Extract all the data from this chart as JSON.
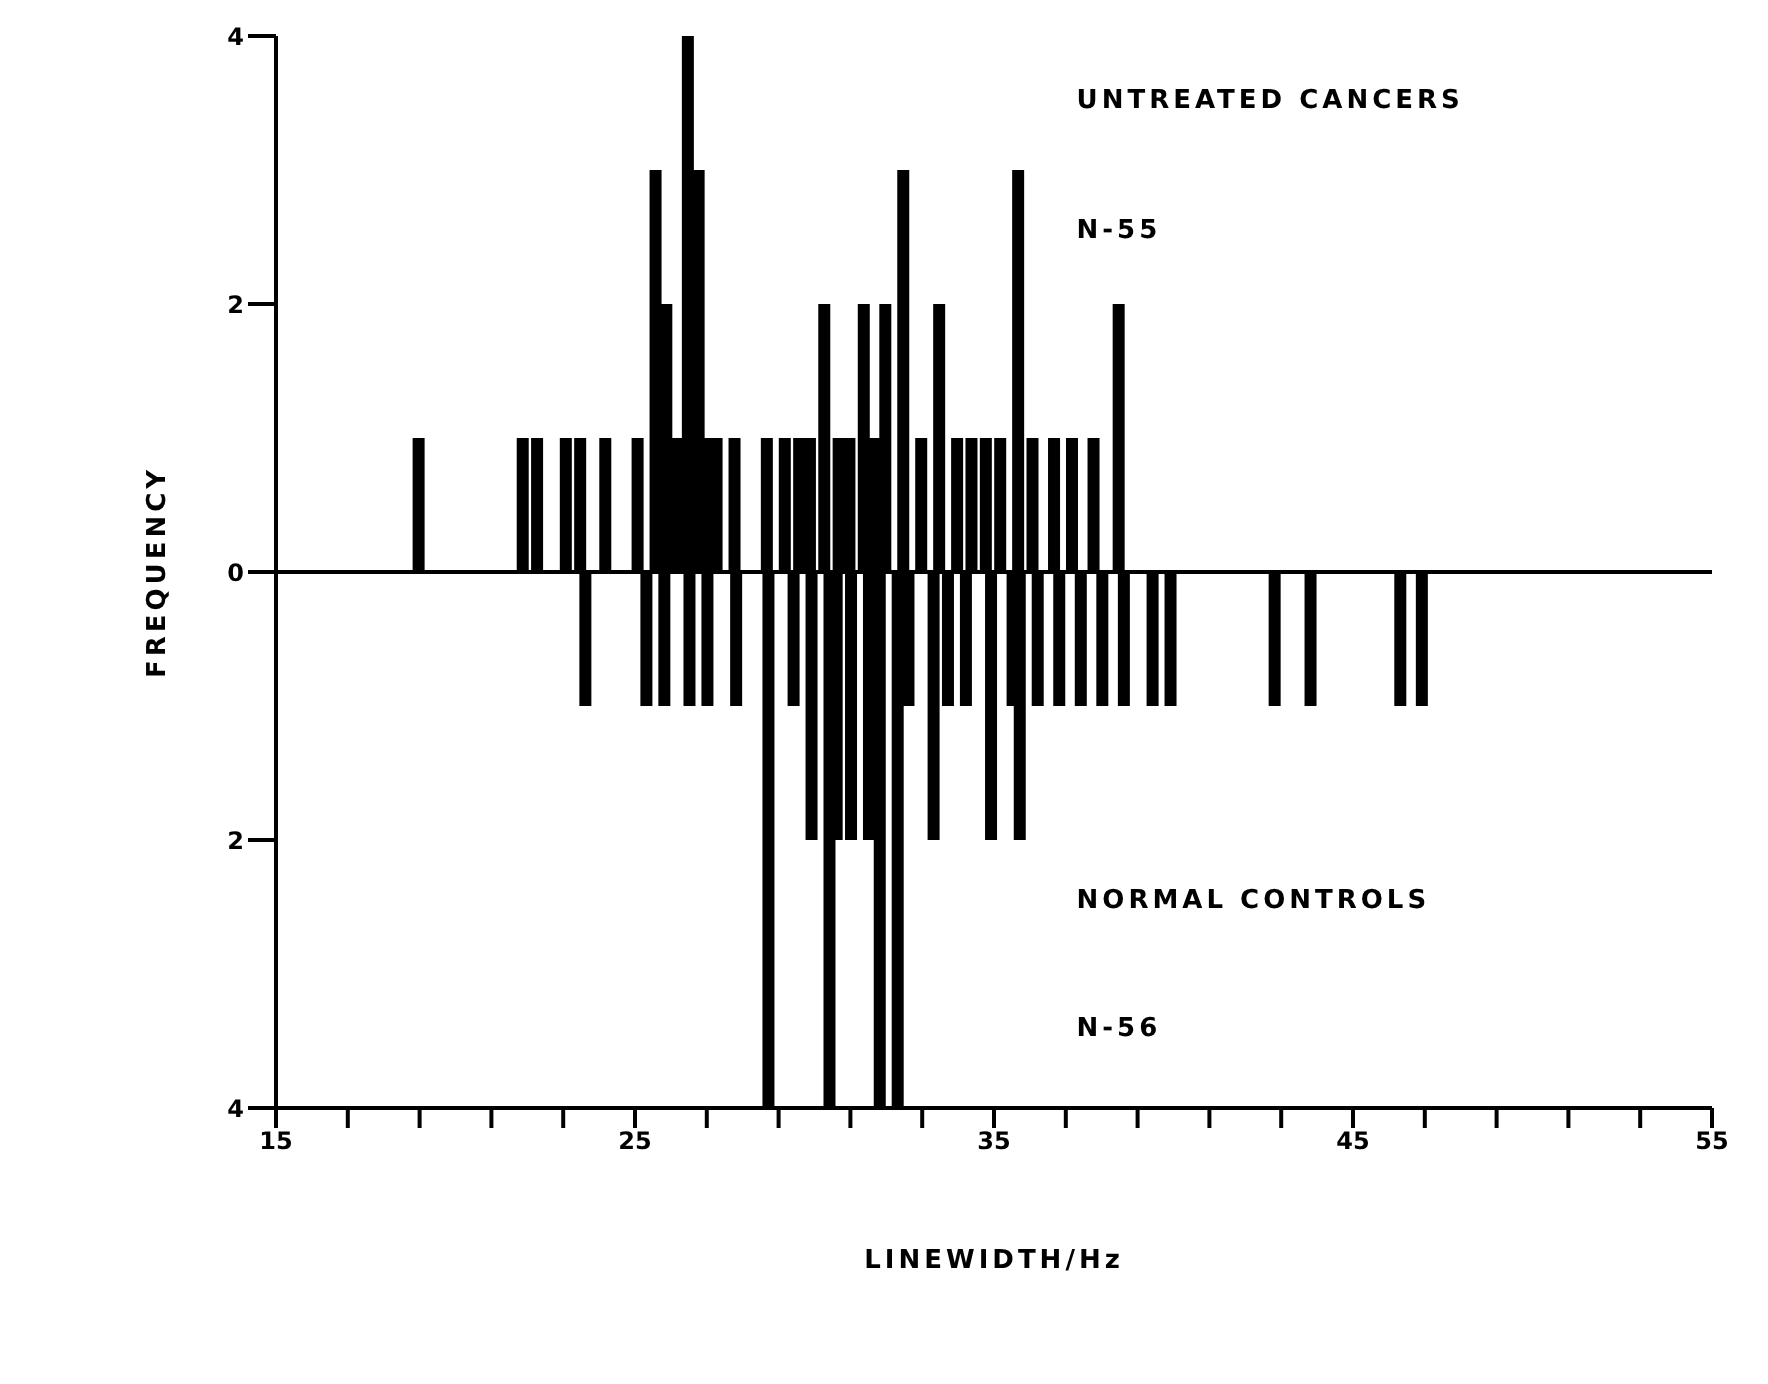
{
  "chart_data": {
    "type": "bar",
    "xlabel": "LINEWIDTH/Hz",
    "ylabel": "FREQUENCY",
    "annotations": [
      "N-55",
      "N-56"
    ],
    "series": [
      {
        "name": "UNTREATED CANCERS",
        "color": "#000000",
        "x": [
          19.0,
          21.9,
          22.3,
          23.1,
          23.5,
          24.2,
          25.1,
          25.6,
          25.9,
          26.2,
          26.5,
          26.8,
          27.0,
          27.3,
          27.8,
          28.7,
          29.2,
          29.6,
          29.9,
          30.3,
          30.7,
          31.0,
          31.4,
          31.7,
          32.0,
          32.5,
          33.0,
          33.5,
          34.0,
          34.4,
          34.8,
          35.2,
          35.7,
          36.1,
          36.7,
          37.2,
          37.8,
          38.5
        ],
        "values": [
          1,
          1,
          1,
          1,
          1,
          1,
          1,
          3,
          2,
          1,
          4,
          3,
          1,
          1,
          1,
          1,
          1,
          1,
          1,
          2,
          1,
          1,
          2,
          1,
          2,
          3,
          1,
          2,
          1,
          1,
          1,
          1,
          3,
          1,
          1,
          1,
          1,
          2
        ]
      },
      {
        "name": "NORMAL CONTROLS",
        "color": "#000000",
        "x": [
          23.6,
          25.3,
          25.8,
          26.5,
          27.0,
          27.8,
          28.7,
          29.4,
          29.9,
          30.4,
          30.6,
          31.0,
          31.5,
          31.8,
          32.3,
          32.6,
          33.3,
          33.7,
          34.2,
          34.9,
          35.5,
          35.7,
          36.2,
          36.8,
          37.4,
          38.0,
          38.6,
          39.4,
          39.9,
          42.8,
          43.8,
          46.3,
          46.9
        ],
        "values": [
          -1,
          -1,
          -1,
          -1,
          -1,
          -1,
          -4,
          -1,
          -2,
          -4,
          -2,
          -2,
          -2,
          -4,
          -4,
          -1,
          -2,
          -1,
          -1,
          -2,
          -1,
          -2,
          -1,
          -1,
          -1,
          -1,
          -1,
          -1,
          -1,
          -1,
          -1,
          -1,
          -1
        ]
      }
    ],
    "xlim": [
      15,
      55
    ],
    "xticks": [
      15,
      {
        "value": 17,
        "label": null
      },
      {
        "value": 19,
        "label": null
      },
      {
        "value": 21,
        "label": null
      },
      {
        "value": 23,
        "label": null
      },
      25,
      {
        "value": 27,
        "label": null
      },
      {
        "value": 29,
        "label": null
      },
      {
        "value": 31,
        "label": null
      },
      {
        "value": 33,
        "label": null
      },
      35,
      {
        "value": 37,
        "label": null
      },
      {
        "value": 39,
        "label": null
      },
      {
        "value": 41,
        "label": null
      },
      {
        "value": 43,
        "label": null
      },
      45,
      {
        "value": 47,
        "label": null
      },
      {
        "value": 49,
        "label": null
      },
      {
        "value": 51,
        "label": null
      },
      {
        "value": 53,
        "label": null
      },
      55
    ],
    "ylim": [
      -4,
      4
    ],
    "yticks": [
      {
        "value": -4,
        "label": "4"
      },
      {
        "value": -2,
        "label": "2"
      },
      0,
      2,
      4
    ],
    "ref_lines": [
      {
        "axis": "y",
        "value": 0,
        "color": "#000000"
      }
    ],
    "grid": false,
    "legend": false
  }
}
